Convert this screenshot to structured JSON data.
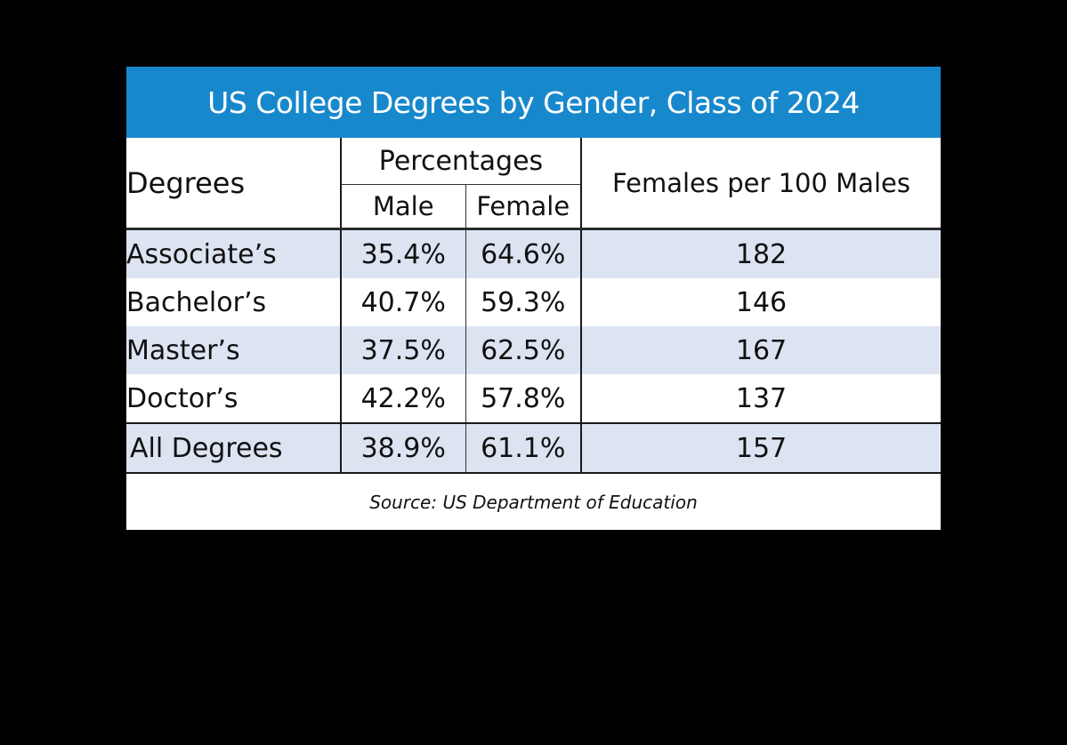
{
  "title": "US College Degrees by Gender, Class of 2024",
  "source": "Source: US Department of Education",
  "colors": {
    "title_bar": "#1888cc",
    "row_shade": "#dce4f2",
    "background": "#000000"
  },
  "chart_data": {
    "type": "table",
    "title": "US College Degrees by Gender, Class of 2024",
    "header": {
      "degrees": "Degrees",
      "percentages": "Percentages",
      "male": "Male",
      "female": "Female",
      "ratio": "Females per 100 Males"
    },
    "rows": [
      {
        "degree": "Associate’s",
        "male": "35.4%",
        "female": "64.6%",
        "ratio": "182"
      },
      {
        "degree": "Bachelor’s",
        "male": "40.7%",
        "female": "59.3%",
        "ratio": "146"
      },
      {
        "degree": "Master’s",
        "male": "37.5%",
        "female": "62.5%",
        "ratio": "167"
      },
      {
        "degree": "Doctor’s",
        "male": "42.2%",
        "female": "57.8%",
        "ratio": "137"
      }
    ],
    "total": {
      "degree": "All Degrees",
      "male": "38.9%",
      "female": "61.1%",
      "ratio": "157"
    },
    "source": "Source: US Department of Education"
  }
}
